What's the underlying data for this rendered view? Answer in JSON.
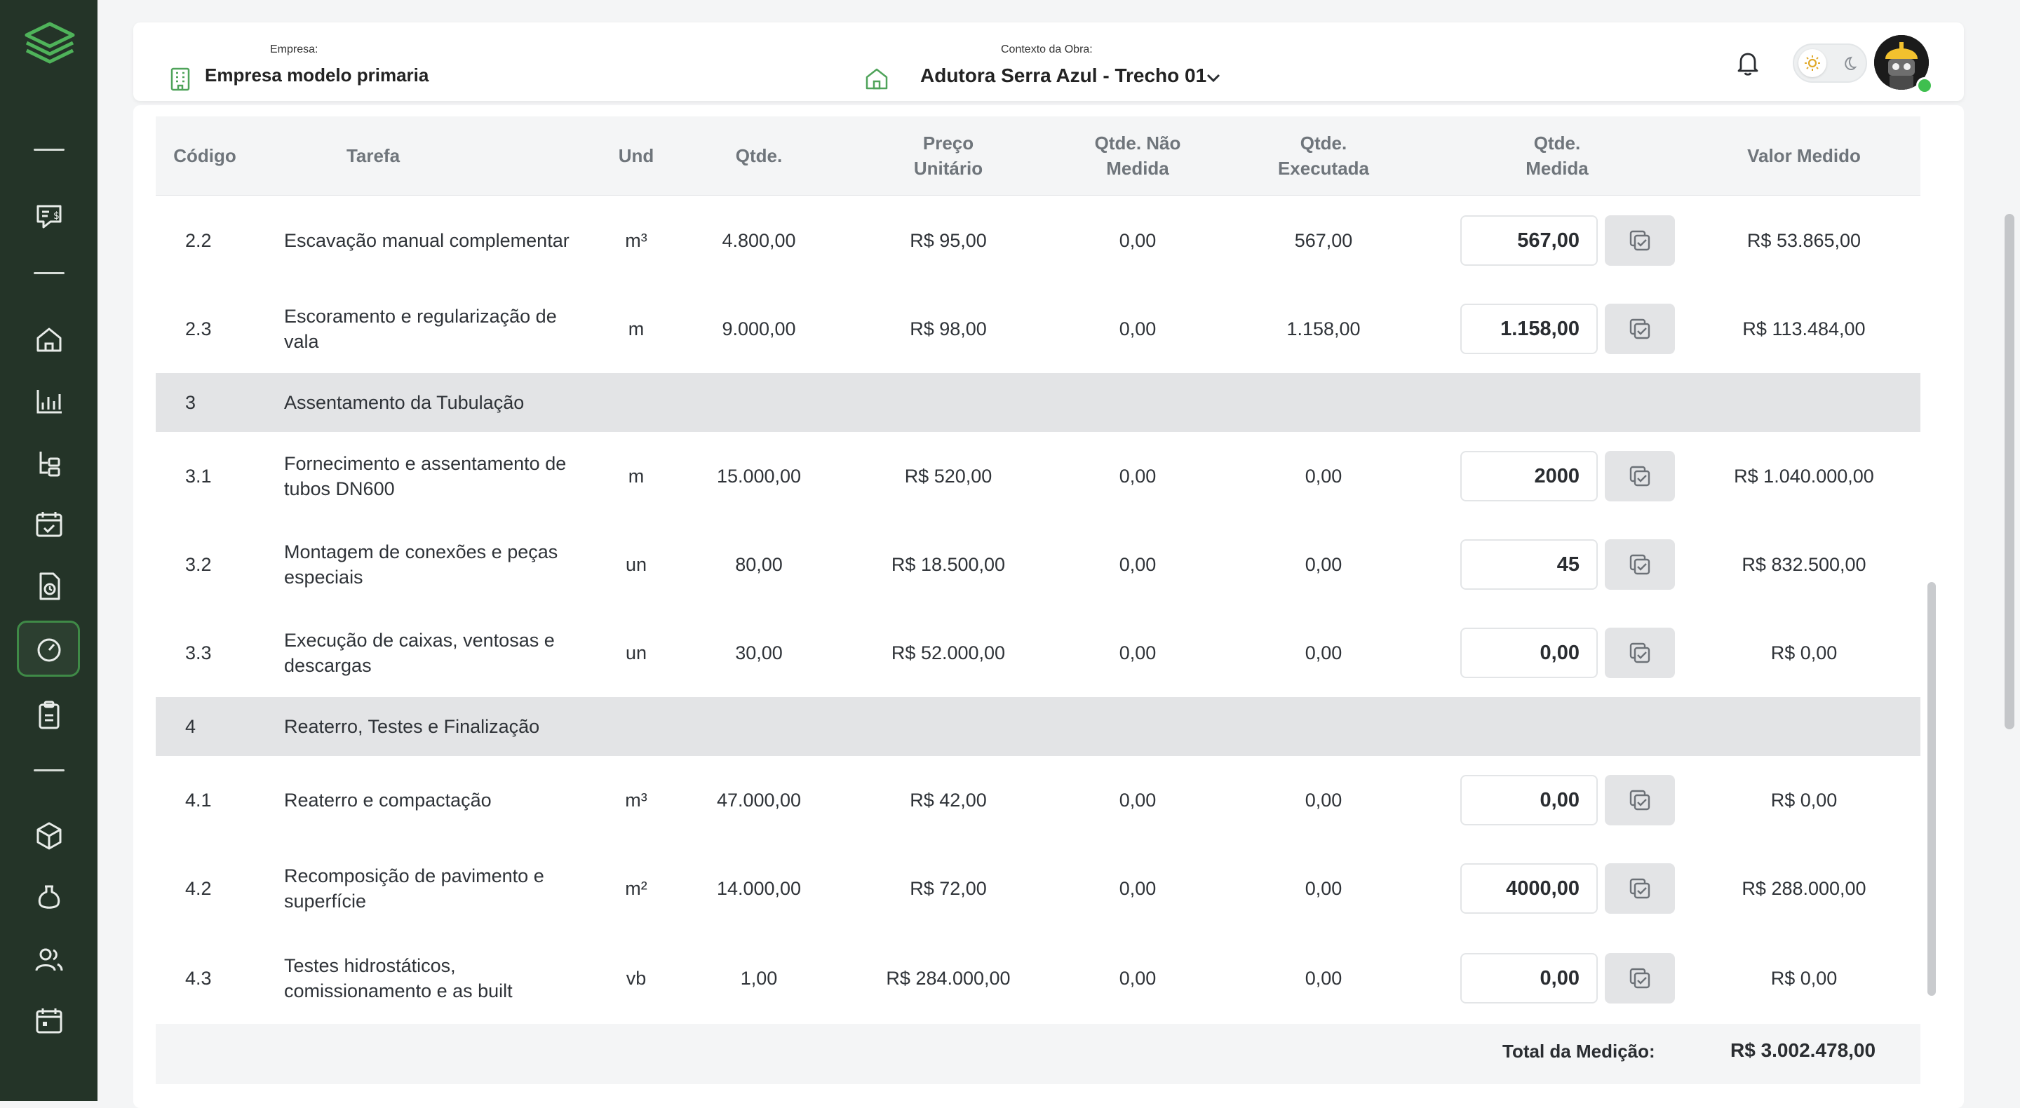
{
  "sidebar": {
    "icons": [
      "logo-layers-icon",
      "separator",
      "receipt-dollar-icon",
      "separator",
      "home-icon",
      "bar-chart-icon",
      "hierarchy-icon",
      "calendar-check-icon",
      "file-clock-icon",
      "gauge-icon",
      "clipboard-icon",
      "separator",
      "box-icon",
      "beaker-icon",
      "users-icon",
      "calendar-icon"
    ],
    "active": "gauge-icon"
  },
  "header": {
    "company_label": "Empresa:",
    "company_name": "Empresa modelo primaria",
    "context_label": "Contexto da Obra:",
    "context_name": "Adutora Serra Azul - Trecho 01"
  },
  "table": {
    "columns": [
      "Código",
      "Tarefa",
      "Und",
      "Qtde.",
      "Preço Unitário",
      "Qtde. Não Medida",
      "Qtde. Executada",
      "Qtde. Medida",
      "Valor Medido"
    ],
    "rows": [
      {
        "type": "item",
        "code": "2.2",
        "task": "Escavação manual complementar",
        "unit": "m³",
        "qty": "4.800,00",
        "price": "R$ 95,00",
        "not_measured": "0,00",
        "executed": "567,00",
        "measured": "567,00",
        "value": "R$ 53.865,00"
      },
      {
        "type": "item",
        "code": "2.3",
        "task": "Escoramento e regularização de vala",
        "unit": "m",
        "qty": "9.000,00",
        "price": "R$ 98,00",
        "not_measured": "0,00",
        "executed": "1.158,00",
        "measured": "1.158,00",
        "value": "R$ 113.484,00"
      },
      {
        "type": "group",
        "code": "3",
        "task": "Assentamento da Tubulação"
      },
      {
        "type": "item",
        "code": "3.1",
        "task": "Fornecimento e assentamento de tubos DN600",
        "unit": "m",
        "qty": "15.000,00",
        "price": "R$ 520,00",
        "not_measured": "0,00",
        "executed": "0,00",
        "measured": "2000",
        "value": "R$ 1.040.000,00"
      },
      {
        "type": "item",
        "code": "3.2",
        "task": "Montagem de conexões e peças especiais",
        "unit": "un",
        "qty": "80,00",
        "price": "R$ 18.500,00",
        "not_measured": "0,00",
        "executed": "0,00",
        "measured": "45",
        "value": "R$ 832.500,00"
      },
      {
        "type": "item",
        "code": "3.3",
        "task": "Execução de caixas, ventosas e descargas",
        "unit": "un",
        "qty": "30,00",
        "price": "R$ 52.000,00",
        "not_measured": "0,00",
        "executed": "0,00",
        "measured": "0,00",
        "value": "R$ 0,00"
      },
      {
        "type": "group",
        "code": "4",
        "task": "Reaterro, Testes e Finalização"
      },
      {
        "type": "item",
        "code": "4.1",
        "task": "Reaterro e compactação",
        "unit": "m³",
        "qty": "47.000,00",
        "price": "R$ 42,00",
        "not_measured": "0,00",
        "executed": "0,00",
        "measured": "0,00",
        "value": "R$ 0,00"
      },
      {
        "type": "item",
        "code": "4.2",
        "task": "Recomposição de pavimento e superfície",
        "unit": "m²",
        "qty": "14.000,00",
        "price": "R$ 72,00",
        "not_measured": "0,00",
        "executed": "0,00",
        "measured": "4000,00",
        "value": "R$ 288.000,00"
      },
      {
        "type": "item",
        "code": "4.3",
        "task": "Testes hidrostáticos, comissionamento e as built",
        "unit": "vb",
        "qty": "1,00",
        "price": "R$ 284.000,00",
        "not_measured": "0,00",
        "executed": "0,00",
        "measured": "0,00",
        "value": "R$ 0,00"
      }
    ],
    "total_label": "Total da Medição:",
    "total_value": "R$ 3.002.478,00"
  },
  "colors": {
    "sidebar": "#243428",
    "accent": "#3f8a47",
    "group_row": "#e3e4e6"
  }
}
